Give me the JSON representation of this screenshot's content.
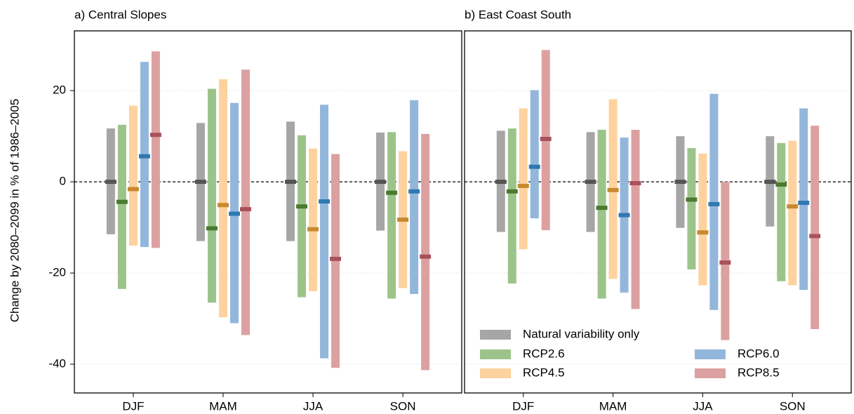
{
  "chart_data": [
    {
      "type": "range",
      "title": "a) Central Slopes",
      "ylabel": "Change by 2080–2099 in % of 1986–2005",
      "categories": [
        "DJF",
        "MAM",
        "JJA",
        "SON"
      ],
      "ylim": [
        -46.3,
        33.1
      ],
      "yticks": [
        -40,
        -20,
        0,
        20
      ],
      "grid": true,
      "zero_line": true,
      "show_ytick_labels": true,
      "series": [
        {
          "color": "#a6a6a6",
          "median_color": "#555555",
          "values": [
            0,
            0,
            0,
            0
          ],
          "low": [
            -11.5,
            -13,
            -13,
            -10.7
          ],
          "high": [
            11.7,
            12.9,
            13.2,
            10.8
          ]
        },
        {
          "color": "#9cc48a",
          "median_color": "#4a7a30",
          "values": [
            -4.4,
            -10.2,
            -5.4,
            -2.4
          ],
          "low": [
            -23.5,
            -26.5,
            -25.3,
            -25.6
          ],
          "high": [
            12.5,
            20.4,
            10.2,
            10.9
          ]
        },
        {
          "color": "#fdd29e",
          "median_color": "#c78a30",
          "values": [
            -1.6,
            -5.1,
            -10.4,
            -8.3
          ],
          "low": [
            -14,
            -29.7,
            -24,
            -23.3
          ],
          "high": [
            16.7,
            22.5,
            7.3,
            6.7
          ]
        },
        {
          "color": "#93b6db",
          "median_color": "#2f78b0",
          "values": [
            5.6,
            -7,
            -4.3,
            -2.1
          ],
          "low": [
            -14.3,
            -31,
            -38.7,
            -24.6
          ],
          "high": [
            26.3,
            17.3,
            16.9,
            17.9
          ]
        },
        {
          "color": "#dca0a0",
          "median_color": "#a9525a",
          "values": [
            10.3,
            -6,
            -16.9,
            -16.4
          ],
          "low": [
            -14.5,
            -33.6,
            -40.8,
            -41.3
          ],
          "high": [
            28.6,
            24.6,
            6.1,
            10.5
          ]
        }
      ]
    },
    {
      "type": "range",
      "title": "b) East Coast South",
      "categories": [
        "DJF",
        "MAM",
        "JJA",
        "SON"
      ],
      "ylim": [
        -46.3,
        33.1
      ],
      "yticks": [
        -40,
        -20,
        0,
        20
      ],
      "grid": true,
      "zero_line": true,
      "show_ytick_labels": false,
      "legend": "lower right",
      "series": [
        {
          "name": "Natural variability only",
          "color": "#a6a6a6",
          "median_color": "#555555",
          "values": [
            0,
            0,
            0,
            0
          ],
          "low": [
            -11,
            -11,
            -10.1,
            -9.8
          ],
          "high": [
            11.2,
            10.9,
            10,
            10
          ]
        },
        {
          "name": "RCP2.6",
          "color": "#9cc48a",
          "median_color": "#4a7a30",
          "values": [
            -2.1,
            -5.7,
            -3.9,
            -0.6
          ],
          "low": [
            -22.3,
            -25.6,
            -19.2,
            -21.8
          ],
          "high": [
            11.7,
            11.4,
            7.4,
            8.5
          ]
        },
        {
          "name": "RCP4.5",
          "color": "#fdd29e",
          "median_color": "#c78a30",
          "values": [
            -0.9,
            -1.8,
            -11.1,
            -5.4
          ],
          "low": [
            -14.8,
            -21.3,
            -22.7,
            -22.7
          ],
          "high": [
            16.1,
            18.1,
            6.2,
            9
          ]
        },
        {
          "name": "RCP6.0",
          "color": "#93b6db",
          "median_color": "#2f78b0",
          "values": [
            3.3,
            -7.3,
            -4.9,
            -4.6
          ],
          "low": [
            -8,
            -24.3,
            -28.1,
            -23.7
          ],
          "high": [
            20.1,
            9.7,
            19.3,
            16.1
          ]
        },
        {
          "name": "RCP8.5",
          "color": "#dca0a0",
          "median_color": "#a9525a",
          "values": [
            9.4,
            -0.3,
            -17.7,
            -11.9
          ],
          "low": [
            -10.6,
            -27.9,
            -34.7,
            -32.3
          ],
          "high": [
            28.9,
            11.4,
            0,
            12.3
          ]
        }
      ]
    }
  ]
}
